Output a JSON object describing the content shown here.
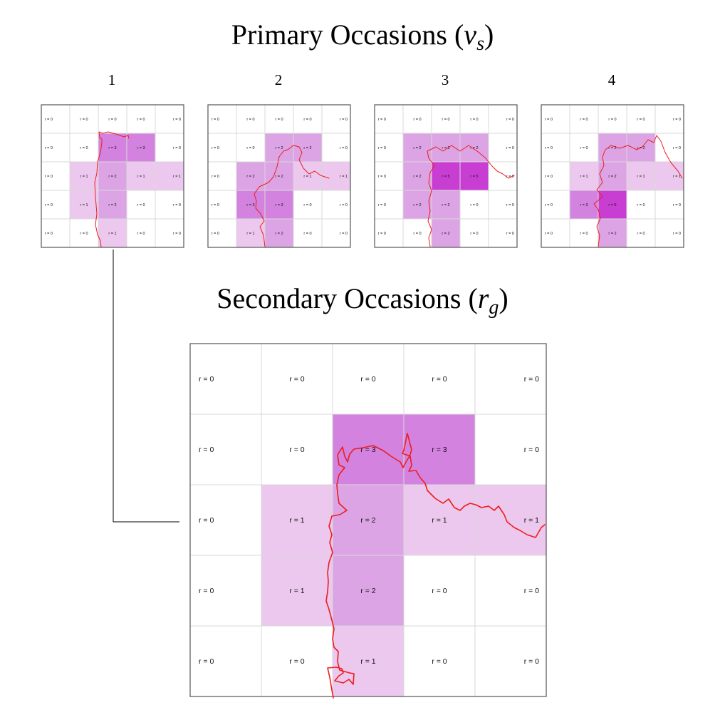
{
  "titles": {
    "primary": {
      "text": "Primary Occasions (",
      "var": "v",
      "sub": "s",
      "close": ")"
    },
    "secondary": {
      "text": "Secondary Occasions (",
      "var": "r",
      "sub": "g",
      "close": ")"
    }
  },
  "colors": {
    "level1": "#ecc8ee",
    "level2": "#dca4e4",
    "level3": "#d383df",
    "level5": "#c93ed2",
    "grid": "#d8d8d8",
    "border": "#555555",
    "track": "#ee1c1c",
    "connector": "#000000"
  },
  "label_prefix": "r = ",
  "primary_occasions": [
    {
      "label": "1",
      "grid": [
        [
          0,
          0,
          0,
          0,
          0
        ],
        [
          0,
          0,
          3,
          3,
          0
        ],
        [
          0,
          1,
          2,
          1,
          1
        ],
        [
          0,
          1,
          2,
          0,
          0
        ],
        [
          0,
          0,
          1,
          0,
          0
        ]
      ]
    },
    {
      "label": "2",
      "grid": [
        [
          0,
          0,
          0,
          0,
          0
        ],
        [
          0,
          0,
          2,
          2,
          0
        ],
        [
          0,
          2,
          2,
          1,
          1
        ],
        [
          0,
          3,
          3,
          0,
          0
        ],
        [
          0,
          1,
          2,
          0,
          0
        ]
      ]
    },
    {
      "label": "3",
      "grid": [
        [
          0,
          0,
          0,
          0,
          0
        ],
        [
          0,
          2,
          2,
          2,
          0
        ],
        [
          0,
          2,
          5,
          5,
          0
        ],
        [
          0,
          2,
          2,
          0,
          0
        ],
        [
          0,
          0,
          2,
          0,
          0
        ]
      ]
    },
    {
      "label": "4",
      "grid": [
        [
          0,
          0,
          0,
          0,
          0
        ],
        [
          0,
          0,
          2,
          2,
          0
        ],
        [
          0,
          1,
          2,
          1,
          1
        ],
        [
          0,
          3,
          5,
          0,
          0
        ],
        [
          0,
          0,
          2,
          0,
          0
        ]
      ]
    }
  ],
  "secondary_occasion": {
    "grid": [
      [
        0,
        0,
        0,
        0,
        0
      ],
      [
        0,
        0,
        3,
        3,
        0
      ],
      [
        0,
        1,
        2,
        1,
        1
      ],
      [
        0,
        1,
        2,
        0,
        0
      ],
      [
        0,
        0,
        1,
        0,
        0
      ]
    ]
  }
}
